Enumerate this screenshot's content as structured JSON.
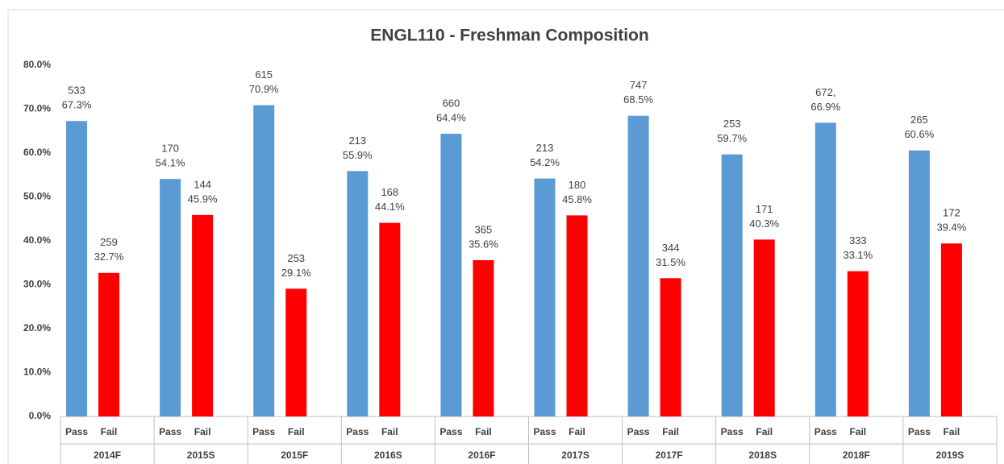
{
  "chart_data": {
    "type": "bar",
    "title": "ENGL110  -  Freshman Composition",
    "categories": [
      "2014F",
      "2015S",
      "2015F",
      "2016S",
      "2016F",
      "2017S",
      "2017F",
      "2018S",
      "2018F",
      "2019S"
    ],
    "series": [
      {
        "name": "Pass",
        "color": "#5b9bd5",
        "values": [
          67.3,
          54.1,
          70.9,
          55.9,
          64.4,
          54.2,
          68.5,
          59.7,
          66.9,
          60.6
        ],
        "value_labels": [
          "67.3%",
          "54.1%",
          "70.9%",
          "55.9%",
          "64.4%",
          "54.2%",
          "68.5%",
          "59.7%",
          "66.9%",
          "60.6%"
        ],
        "counts": [
          533,
          170,
          615,
          213,
          660,
          213,
          747,
          253,
          {
            "value": 672,
            "label": "672,"
          },
          265
        ]
      },
      {
        "name": "Fail",
        "color": "#ff0000",
        "values": [
          32.7,
          45.9,
          29.1,
          44.1,
          35.6,
          45.8,
          31.5,
          40.3,
          33.1,
          39.4
        ],
        "value_labels": [
          "32.7%",
          "45.9%",
          "29.1%",
          "44.1%",
          "35.6%",
          "45.8%",
          "31.5%",
          "40.3%",
          "33.1%",
          "39.4%"
        ],
        "counts": [
          259,
          144,
          253,
          168,
          365,
          180,
          344,
          171,
          333,
          172
        ]
      }
    ],
    "ylim": [
      0,
      80
    ],
    "yticks": [
      {
        "value": 0,
        "label": "0.0%"
      },
      {
        "value": 10,
        "label": "10.0%"
      },
      {
        "value": 20,
        "label": "20.0%"
      },
      {
        "value": 30,
        "label": "30.0%"
      },
      {
        "value": 40,
        "label": "40.0%"
      },
      {
        "value": 50,
        "label": "50.0%"
      },
      {
        "value": 60,
        "label": "60.0%"
      },
      {
        "value": 70,
        "label": "70.0%"
      },
      {
        "value": 80,
        "label": "80.0%"
      }
    ],
    "grid": false
  }
}
